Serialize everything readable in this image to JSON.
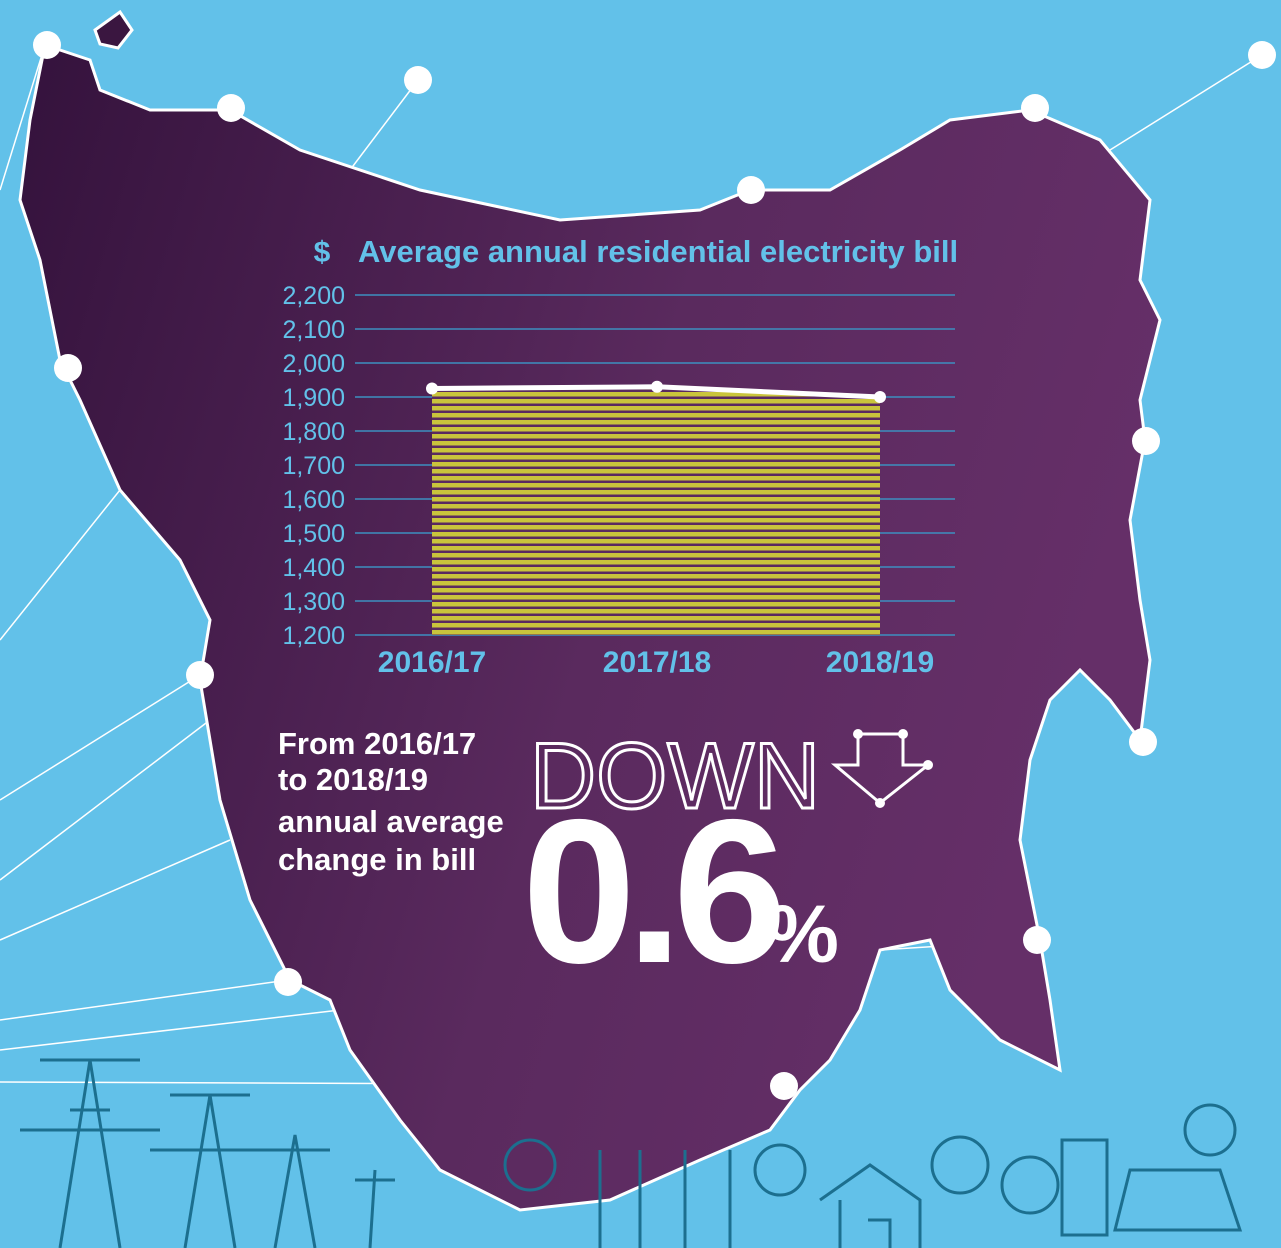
{
  "chart_data": {
    "type": "line",
    "title": "Average annual residential electricity bill",
    "y_label": "$",
    "categories": [
      "2016/17",
      "2017/18",
      "2018/19"
    ],
    "values": [
      1925,
      1930,
      1900
    ],
    "color": "#ffffff",
    "area_color": "#c9c43c",
    "ylim": [
      1200,
      2200
    ],
    "yticks": [
      {
        "value": 1200,
        "label": "1,200"
      },
      {
        "value": 1300,
        "label": "1,300"
      },
      {
        "value": 1400,
        "label": "1,400"
      },
      {
        "value": 1500,
        "label": "1,500"
      },
      {
        "value": 1600,
        "label": "1,600"
      },
      {
        "value": 1700,
        "label": "1,700"
      },
      {
        "value": 1800,
        "label": "1,800"
      },
      {
        "value": 1900,
        "label": "1,900"
      },
      {
        "value": 2000,
        "label": "2,000"
      },
      {
        "value": 2100,
        "label": "2,100"
      },
      {
        "value": 2200,
        "label": "2,200"
      }
    ],
    "grid": true,
    "annotation": {
      "lines": [
        "From 2016/17",
        "to 2018/19",
        "annual average",
        "change in bill"
      ],
      "direction": "DOWN",
      "change": "0.6",
      "unit": "%"
    }
  }
}
